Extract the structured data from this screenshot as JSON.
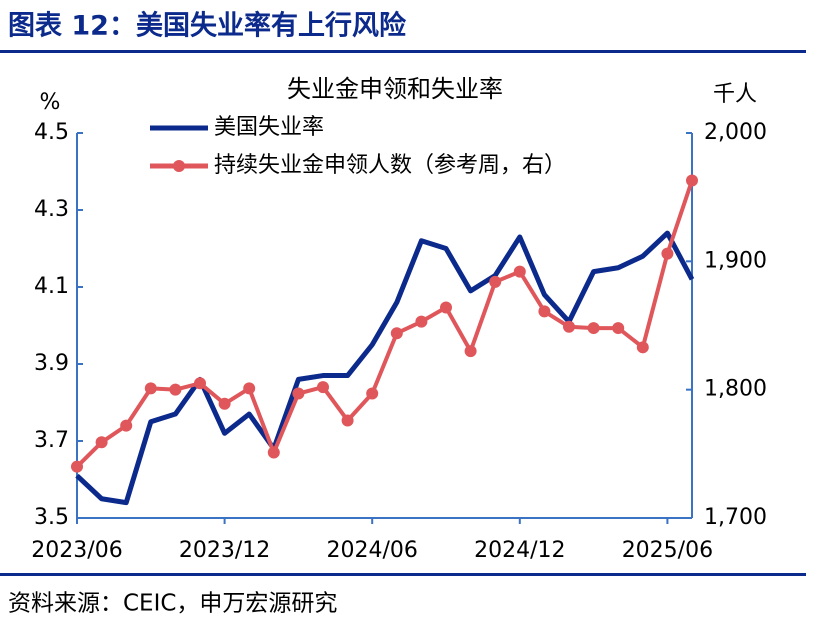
{
  "header": {
    "title": "图表 12：美国失业率有上行风险"
  },
  "chart_data": {
    "type": "line",
    "title": "失业金申领和失业率",
    "y_unit": "%",
    "y2_unit": "千人",
    "categories": [
      "2023/06",
      null,
      null,
      null,
      null,
      null,
      "2023/12",
      null,
      null,
      null,
      null,
      null,
      "2024/06",
      null,
      null,
      null,
      null,
      null,
      "2024/12",
      null,
      null,
      null,
      null,
      null,
      "2025/06",
      null
    ],
    "series": [
      {
        "name": "美国失业率",
        "color": "#0b2a8c",
        "axis": "y",
        "marker": false,
        "values": [
          3.61,
          3.55,
          3.54,
          3.75,
          3.77,
          3.86,
          3.72,
          3.77,
          3.68,
          3.86,
          3.87,
          3.87,
          3.95,
          4.06,
          4.22,
          4.2,
          4.09,
          4.13,
          4.23,
          4.08,
          4.01,
          4.14,
          4.15,
          4.18,
          4.24,
          4.12
        ]
      },
      {
        "name": "持续失业金申领人数（参考周，右）",
        "color": "#e0575b",
        "axis": "y2",
        "marker": true,
        "values": [
          1740,
          1759,
          1772,
          1801,
          1800,
          1805,
          1789,
          1801,
          1751,
          1797,
          1802,
          1776,
          1797,
          1844,
          1853,
          1864,
          1830,
          1884,
          1892,
          1861,
          1849,
          1848,
          1848,
          1833,
          1906,
          1963
        ]
      }
    ],
    "ylim": [
      3.5,
      4.5
    ],
    "yticks": [
      3.5,
      3.7,
      3.9,
      4.1,
      4.3,
      4.5
    ],
    "y2lim": [
      1700,
      2000
    ],
    "y2ticks": [
      {
        "value": 1700,
        "label": "1,700"
      },
      {
        "value": 1800,
        "label": "1,800"
      },
      {
        "value": 1900,
        "label": "1,900"
      },
      {
        "value": 2000,
        "label": "2,000"
      }
    ],
    "source": "资料来源：CEIC，申万宏源研究"
  }
}
